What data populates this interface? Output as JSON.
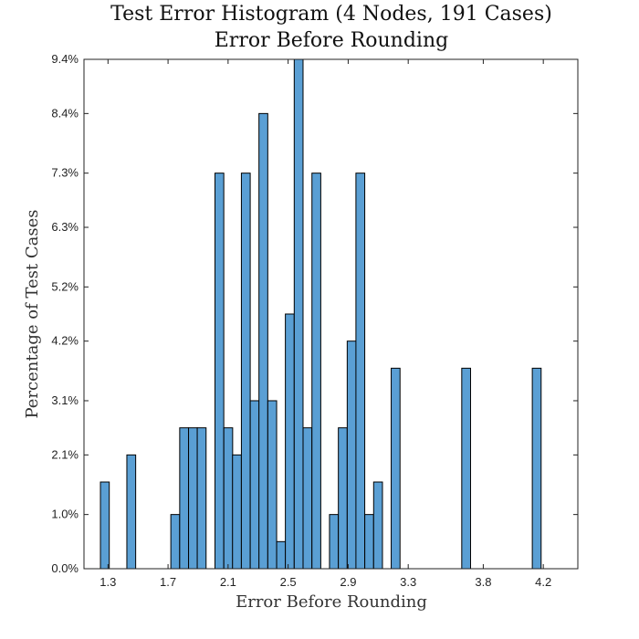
{
  "chart_data": {
    "type": "bar",
    "title": "Test Error Histogram (4 Nodes, 191 Cases)",
    "subtitle": "Error Before Rounding",
    "xlabel": "Error Before Rounding",
    "ylabel": "Percentage of Test Cases",
    "xlim": [
      1.14,
      4.43
    ],
    "ylim": [
      0,
      9.4
    ],
    "x_ticks": [
      1.3,
      1.7,
      2.1,
      2.5,
      2.9,
      3.3,
      3.8,
      4.2
    ],
    "x_tick_labels": [
      "1.3",
      "1.7",
      "2.1",
      "2.5",
      "2.9",
      "3.3",
      "3.8",
      "4.2"
    ],
    "y_ticks": [
      0.0,
      1.0,
      2.1,
      3.1,
      4.2,
      5.2,
      6.3,
      7.3,
      8.4,
      9.4
    ],
    "y_tick_labels": [
      "0.0%",
      "1.0%",
      "2.1%",
      "3.1%",
      "4.2%",
      "5.2%",
      "6.3%",
      "7.3%",
      "8.4%",
      "9.4%"
    ],
    "bin_width": 0.0588,
    "bar_color": "#5a9fd4",
    "categories": [
      "1.279",
      "1.455",
      "1.748",
      "1.807",
      "1.866",
      "1.924",
      "2.042",
      "2.101",
      "2.159",
      "2.218",
      "2.277",
      "2.335",
      "2.394",
      "2.453",
      "2.511",
      "2.570",
      "2.629",
      "2.688",
      "2.805",
      "2.864",
      "2.923",
      "2.981",
      "3.040",
      "3.099",
      "3.216",
      "3.686",
      "4.156"
    ],
    "values": [
      1.6,
      2.1,
      1.0,
      2.6,
      2.6,
      2.6,
      7.3,
      2.6,
      2.1,
      7.3,
      3.1,
      8.4,
      3.1,
      0.5,
      4.7,
      9.4,
      2.6,
      7.3,
      1.0,
      2.6,
      4.2,
      7.3,
      1.0,
      1.6,
      3.7,
      3.7,
      3.7
    ]
  }
}
